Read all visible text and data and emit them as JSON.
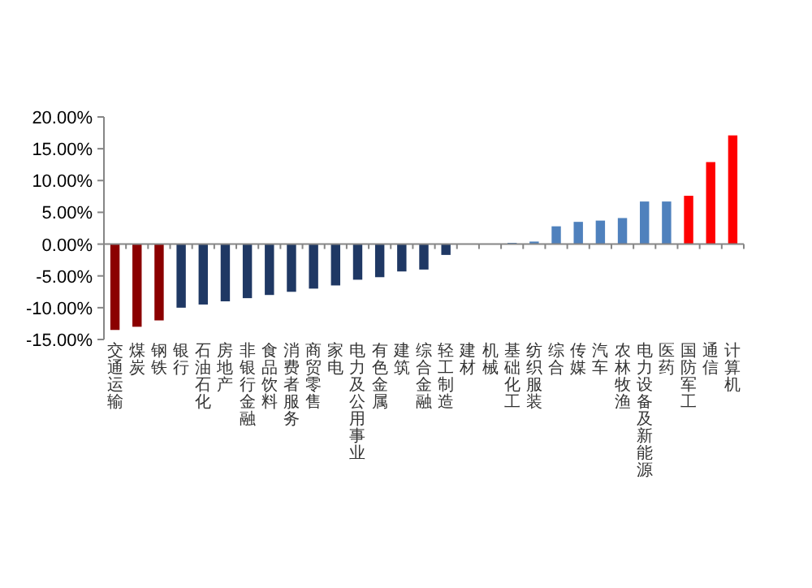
{
  "chart_data": {
    "type": "bar",
    "categories": [
      "交通运输",
      "煤炭",
      "钢铁",
      "银行",
      "石油石化",
      "房地产",
      "非银行金融",
      "食品饮料",
      "消费者服务",
      "商贸零售",
      "家电",
      "电力及公用事业",
      "有色金属",
      "建筑",
      "综合金融",
      "轻工制造",
      "建材",
      "机械",
      "基础化工",
      "纺织服装",
      "综合",
      "传媒",
      "汽车",
      "农林牧渔",
      "电力设备及新能源",
      "医药",
      "国防军工",
      "通信",
      "计算机"
    ],
    "values": [
      -13.5,
      -13,
      -12,
      -10,
      -9.5,
      -9,
      -8.5,
      -8,
      -7.5,
      -7,
      -6.5,
      -5.6,
      -5.2,
      -4.3,
      -4,
      -1.7,
      null,
      null,
      0.2,
      0.4,
      2.8,
      3.5,
      3.7,
      4.1,
      6.7,
      6.7,
      7.6,
      12.9,
      17.1
    ],
    "colors": [
      "#8b0000",
      "#8b0000",
      "#8b0000",
      "#1f3864",
      "#1f3864",
      "#1f3864",
      "#1f3864",
      "#1f3864",
      "#1f3864",
      "#1f3864",
      "#1f3864",
      "#1f3864",
      "#1f3864",
      "#1f3864",
      "#1f3864",
      "#1f3864",
      null,
      null,
      "#4f81bd",
      "#4f81bd",
      "#4f81bd",
      "#4f81bd",
      "#4f81bd",
      "#4f81bd",
      "#4f81bd",
      "#4f81bd",
      "#ff0000",
      "#ff0000",
      "#ff0000"
    ],
    "ylim": [
      -15,
      20
    ],
    "yticks": [
      {
        "value": -15,
        "label": "-15.00%"
      },
      {
        "value": -10,
        "label": "-10.00%"
      },
      {
        "value": -5,
        "label": "-5.00%"
      },
      {
        "value": 0,
        "label": "0.00%"
      },
      {
        "value": 5,
        "label": "5.00%"
      },
      {
        "value": 10,
        "label": "10.00%"
      },
      {
        "value": 15,
        "label": "15.00%"
      },
      {
        "value": 20,
        "label": "20.00%"
      }
    ]
  }
}
